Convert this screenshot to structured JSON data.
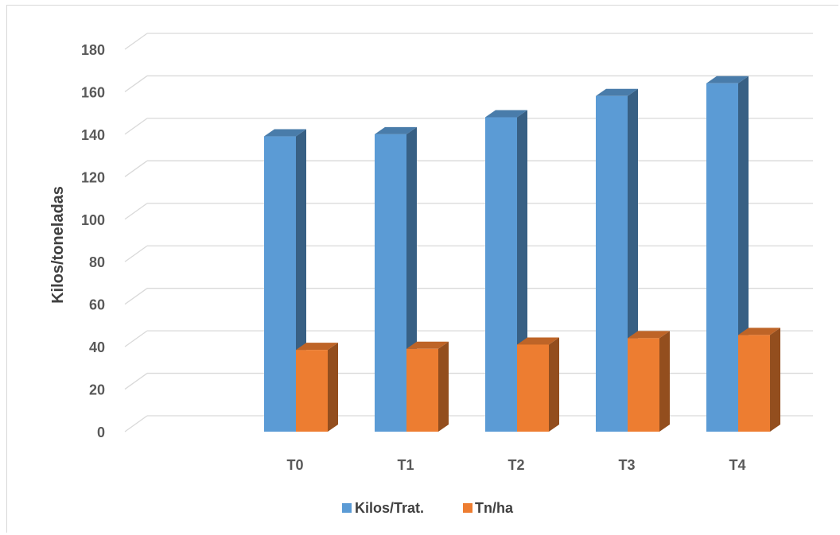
{
  "chart_data": {
    "type": "bar",
    "categories": [
      "T0",
      "T1",
      "T2",
      "T3",
      "T4"
    ],
    "series": [
      {
        "name": "Kilos/Trat.",
        "values": [
          139,
          140,
          148,
          158,
          164
        ],
        "color": "#5b9bd5"
      },
      {
        "name": "Tn/ha",
        "values": [
          38.5,
          39,
          41,
          44,
          45.5
        ],
        "color": "#ed7d31"
      }
    ],
    "title": "",
    "xlabel": "",
    "ylabel": "Kilos/toneladas",
    "ylim": [
      0,
      180
    ],
    "yticks": [
      0,
      20,
      40,
      60,
      80,
      100,
      120,
      140,
      160,
      180
    ],
    "grid": true,
    "legend": "bottom",
    "style": "3d-column"
  }
}
